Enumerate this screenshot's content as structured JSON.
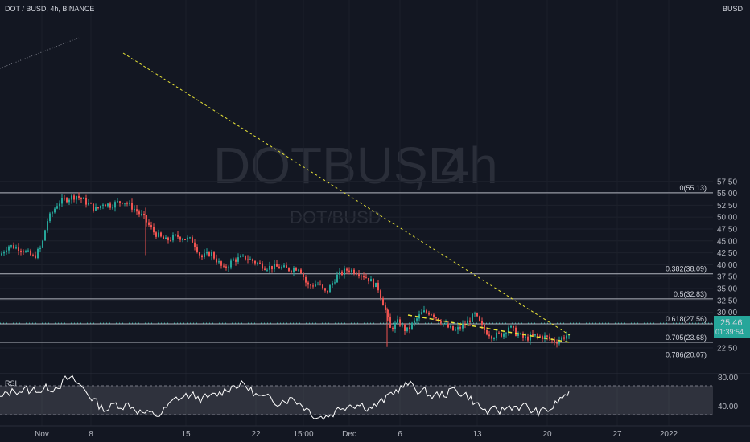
{
  "header": {
    "symbol_line": "DOT / BUSD, 4h, BINANCE",
    "currency": "BUSD"
  },
  "watermark": {
    "symbol": "DOTBUSD",
    "interval": ", 4h",
    "sub": "DOT/BUSD"
  },
  "price_axis": {
    "ticks": [
      "57.50",
      "55.00",
      "52.50",
      "50.00",
      "47.50",
      "45.00",
      "42.50",
      "40.00",
      "37.50",
      "35.00",
      "32.50",
      "30.00",
      "27.50",
      "22.50"
    ]
  },
  "last_price": {
    "value": "25.46",
    "countdown": "01:39:54",
    "color": "#26a69a"
  },
  "fib_levels": [
    {
      "label": "0(55.13)",
      "price": 55.13
    },
    {
      "label": "0.382(38.09)",
      "price": 38.09
    },
    {
      "label": "0.5(32.83)",
      "price": 32.83
    },
    {
      "label": "0.618(27.56)",
      "price": 27.56
    },
    {
      "label": "0.705(23.68)",
      "price": 23.68
    },
    {
      "label": "0.786(20.07)",
      "price": 20.07
    }
  ],
  "rsi": {
    "label": "RSI",
    "ticks": [
      "80.00",
      "40.00"
    ],
    "upper": 70,
    "lower": 30
  },
  "time_axis": {
    "labels": [
      "Nov",
      "8",
      "15",
      "22",
      "15:00",
      "Dec",
      "6",
      "13",
      "20",
      "27",
      "2022"
    ]
  },
  "colors": {
    "up": "#26a69a",
    "down": "#ef5350",
    "trendline": "#e8e337",
    "fib": "#b2b5be",
    "rsi_line": "#ffffff"
  },
  "chart_data": {
    "type": "candlestick",
    "title": "DOT / BUSD, 4h, BINANCE",
    "ylim": [
      19.5,
      58.5
    ],
    "key_points": [
      {
        "date": "Nov 4",
        "price": 55.1,
        "note": "peak"
      },
      {
        "date": "Nov 8",
        "price": 53.5
      },
      {
        "date": "Dec 1",
        "price": 39.2
      },
      {
        "date": "Dec 4",
        "price": 26.0
      },
      {
        "date": "Dec 13",
        "price": 30.0
      },
      {
        "date": "Dec 20",
        "price": 23.6
      },
      {
        "date": "Dec 22",
        "price": 25.46,
        "note": "last"
      }
    ],
    "trendlines": [
      {
        "from": [
          "Nov 8",
          53.5
        ],
        "to": [
          "Dec 22",
          24.0
        ],
        "style": "dashed"
      },
      {
        "from": [
          "Dec 6",
          26.0
        ],
        "to": [
          "Dec 22",
          23.4
        ],
        "style": "dashed"
      }
    ],
    "rsi_range": [
      20,
      90
    ]
  }
}
